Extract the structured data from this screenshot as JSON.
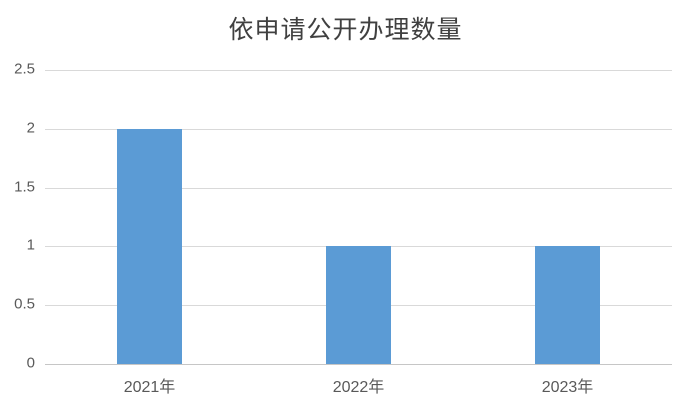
{
  "chart_data": {
    "type": "bar",
    "title": "依申请公开办理数量",
    "categories": [
      "2021年",
      "2022年",
      "2023年"
    ],
    "values": [
      2,
      1,
      1
    ],
    "xlabel": "",
    "ylabel": "",
    "ylim": [
      0,
      2.5
    ],
    "yticks": [
      0,
      0.5,
      1,
      1.5,
      2,
      2.5
    ],
    "grid": true,
    "legend": false
  },
  "colors": {
    "bar": "#5B9BD5",
    "gridline": "#D9D9D9",
    "axis_line": "#C6C6C6",
    "tick_text": "#595959",
    "title_text": "#404040",
    "background": "#FFFFFF"
  }
}
